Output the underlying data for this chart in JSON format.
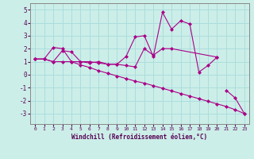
{
  "xlabel": "Windchill (Refroidissement éolien,°C)",
  "background_color": "#cceee8",
  "grid_color": "#aadddd",
  "line_color": "#aa0088",
  "xlim": [
    -0.5,
    23.5
  ],
  "ylim": [
    -3.8,
    5.5
  ],
  "xticks": [
    0,
    1,
    2,
    3,
    4,
    5,
    6,
    7,
    8,
    9,
    10,
    11,
    12,
    13,
    14,
    15,
    16,
    17,
    18,
    19,
    20,
    21,
    22,
    23
  ],
  "yticks": [
    -3,
    -2,
    -1,
    0,
    1,
    2,
    3,
    4,
    5
  ],
  "series": [
    {
      "x": [
        0,
        1,
        2,
        3,
        4,
        5,
        6,
        7,
        8,
        9,
        10,
        11,
        12,
        13,
        14,
        15,
        16,
        17,
        18,
        19,
        20
      ],
      "y": [
        1.2,
        1.2,
        2.1,
        2.0,
        1.0,
        1.0,
        0.9,
        1.0,
        0.8,
        0.8,
        1.4,
        2.9,
        3.0,
        1.4,
        4.8,
        3.5,
        4.15,
        3.9,
        0.2,
        0.7,
        1.35
      ]
    },
    {
      "x": [
        0,
        1,
        2,
        3,
        4,
        5,
        6,
        7,
        8,
        9,
        10,
        11,
        12,
        13,
        14,
        15,
        20
      ],
      "y": [
        1.2,
        1.2,
        1.0,
        1.85,
        1.75,
        1.0,
        1.0,
        0.9,
        0.8,
        0.8,
        0.7,
        0.6,
        2.0,
        1.5,
        2.0,
        2.0,
        1.35
      ]
    },
    {
      "x": [
        0,
        1,
        2,
        3,
        4,
        5,
        6,
        7,
        8,
        9,
        10,
        11,
        12,
        13,
        14,
        15,
        16,
        17,
        18,
        19,
        20,
        21,
        22,
        23
      ],
      "y": [
        1.2,
        1.2,
        1.0,
        1.0,
        1.0,
        0.75,
        0.55,
        0.3,
        0.1,
        -0.1,
        -0.3,
        -0.5,
        -0.65,
        -0.85,
        -1.05,
        -1.25,
        -1.45,
        -1.65,
        -1.85,
        -2.05,
        -2.25,
        -2.45,
        -2.7,
        -3.0
      ]
    },
    {
      "x": [
        21,
        22,
        23
      ],
      "y": [
        -1.2,
        -1.8,
        -3.0
      ]
    }
  ]
}
